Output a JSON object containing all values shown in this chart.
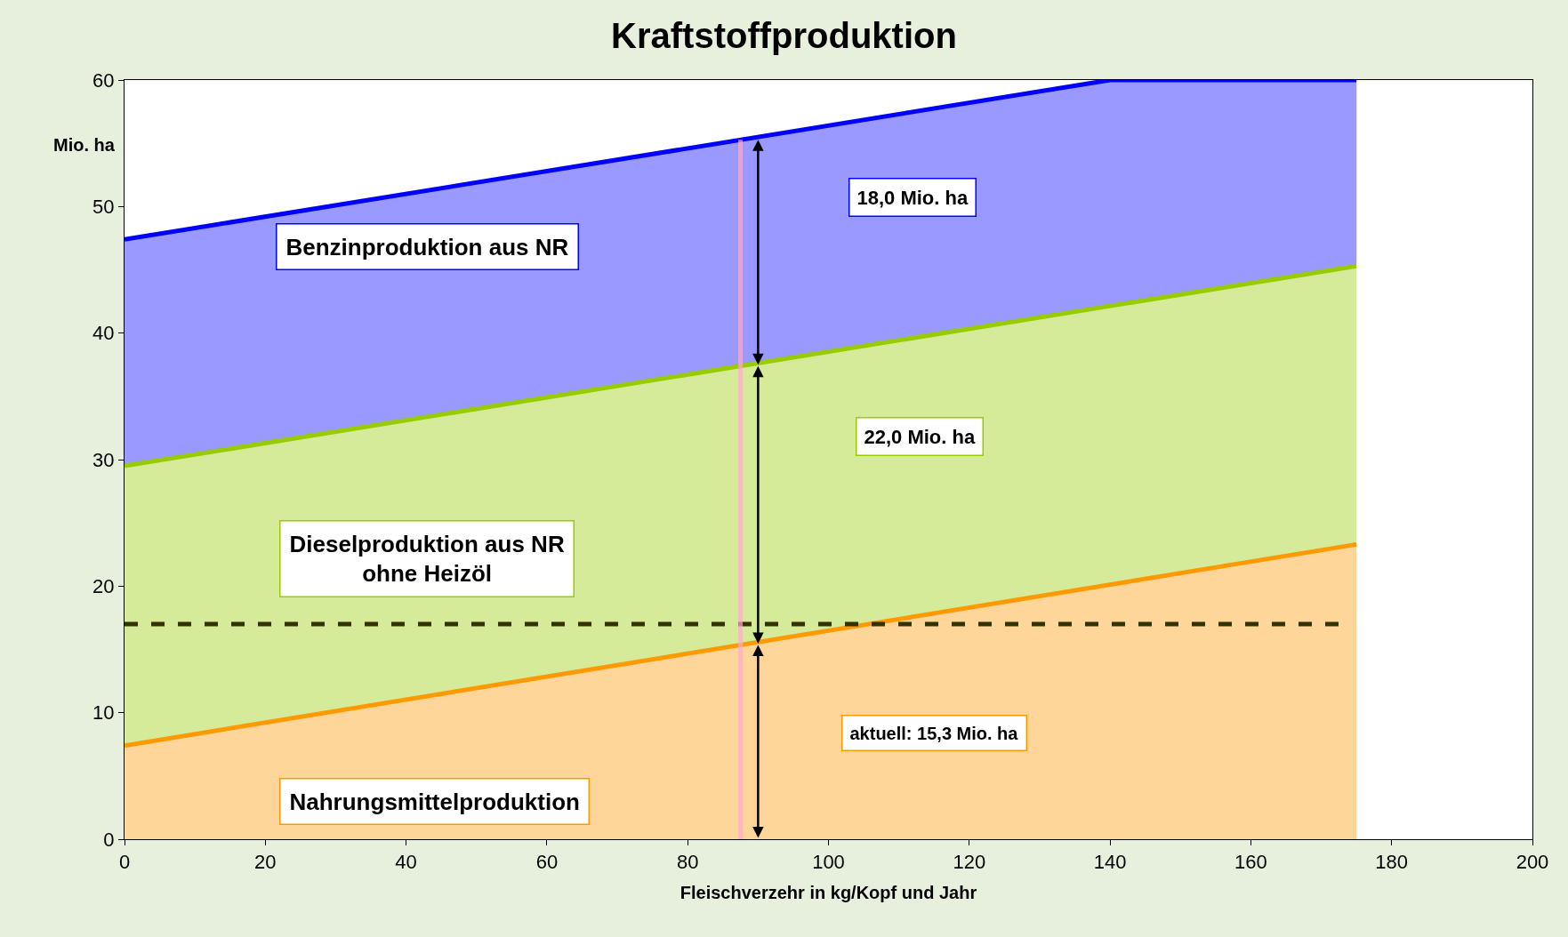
{
  "chart_data": {
    "type": "area",
    "title": "Kraftstoffproduktion",
    "xlabel": "Fleischverzehr in kg/Kopf und Jahr",
    "ylabel": "Mio. ha",
    "series": [
      {
        "color": "#ff9900",
        "x": [
          0,
          175
        ],
        "values": [
          7.4,
          23.3
        ]
      },
      {
        "color": "#99cc00",
        "x": [
          0,
          175
        ],
        "values": [
          29.5,
          45.3
        ]
      },
      {
        "color": "#0000ff",
        "x": [
          0,
          140,
          175
        ],
        "values": [
          47.4,
          60,
          60
        ]
      }
    ],
    "annotations": [
      "Nahrungsmittelproduktion",
      "Dieselproduktion aus NR\nohne Heizöl",
      "Benzinproduktion aus NR",
      "aktuell: 15,3 Mio. ha",
      "22,0 Mio. ha",
      "18,0 Mio. ha"
    ],
    "ref_lines": [
      {
        "axis": "y",
        "value": 17,
        "color": "#333300",
        "line_style": "dashed"
      },
      {
        "axis": "x",
        "value": 87.5,
        "color": "#ffaacc",
        "line_style": "solid"
      }
    ],
    "xlim": [
      0,
      200
    ],
    "xticks": [
      0,
      20,
      40,
      60,
      80,
      100,
      120,
      140,
      160,
      180,
      200
    ],
    "ylim": [
      0,
      60
    ],
    "yticks": [
      0,
      10,
      20,
      30,
      40,
      50,
      60
    ]
  }
}
